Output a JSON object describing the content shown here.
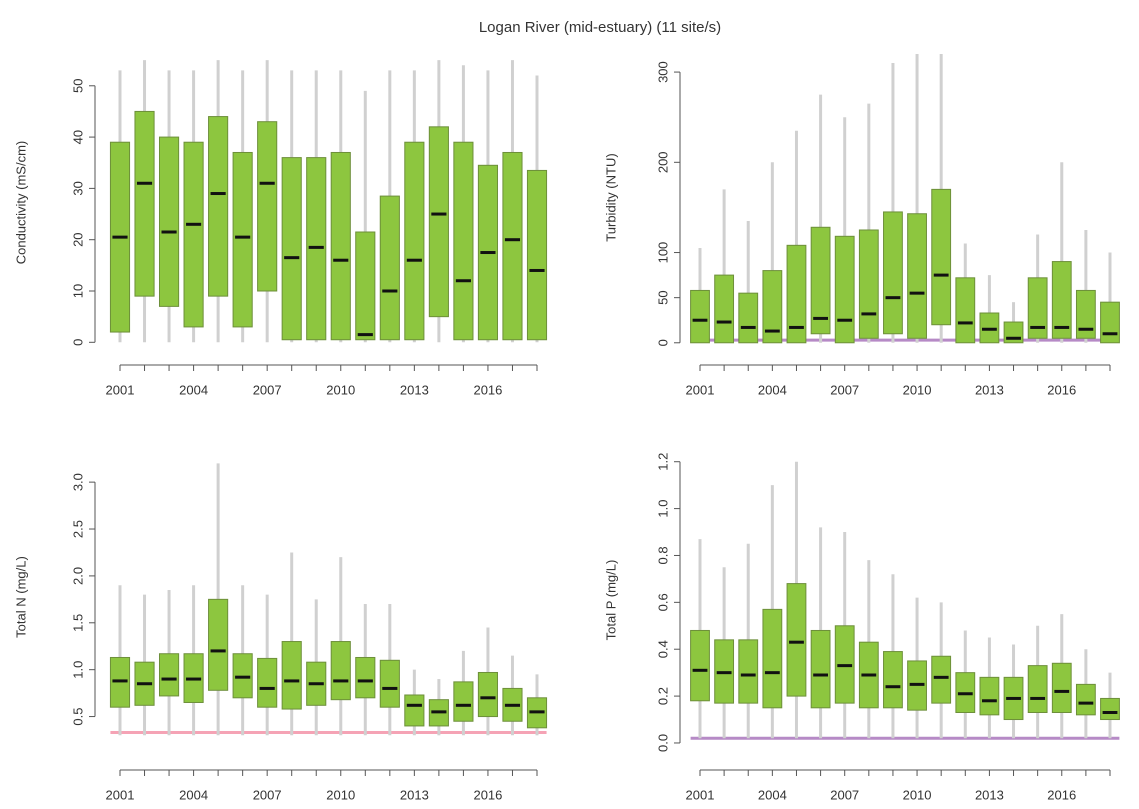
{
  "title": "Logan River (mid-estuary) (11 site/s)",
  "chart_data": [
    {
      "type": "boxplot",
      "ylabel": "Conductivity (mS/cm)",
      "color": "#8dc63f",
      "border": "#6d8f3a",
      "whisker_color": "#d0d0d0",
      "categories": [
        "2001",
        null,
        null,
        "2004",
        null,
        null,
        "2007",
        null,
        null,
        "2010",
        null,
        null,
        "2013",
        null,
        null,
        "2016",
        null,
        null
      ],
      "whisker_low": [
        0,
        0,
        0,
        0,
        0,
        0,
        0,
        0,
        0,
        0,
        0,
        0,
        0,
        0,
        0,
        0,
        0,
        0
      ],
      "q1": [
        2,
        9,
        7,
        3,
        9,
        3,
        10,
        0.5,
        0.5,
        0.5,
        0.5,
        0.5,
        0.5,
        5,
        0.5,
        0.5,
        0.5,
        0.5
      ],
      "median": [
        20.5,
        31,
        21.5,
        23,
        29,
        20.5,
        31,
        16.5,
        18.5,
        16,
        1.5,
        10,
        16,
        25,
        12,
        17.5,
        20,
        14
      ],
      "q3": [
        39,
        45,
        40,
        39,
        44,
        37,
        43,
        36,
        36,
        37,
        21.5,
        28.5,
        39,
        42,
        39,
        34.5,
        37,
        33.5
      ],
      "whisker_high": [
        53,
        55,
        53,
        53,
        55,
        53,
        55,
        53,
        53,
        53,
        49,
        53,
        53,
        55,
        54,
        53,
        55,
        52
      ],
      "ylim": [
        -1.5,
        56
      ],
      "yticks": [
        0,
        10,
        20,
        30,
        40,
        50
      ]
    },
    {
      "type": "boxplot",
      "ylabel": "Turbidity (NTU)",
      "color": "#8dc63f",
      "border": "#6d8f3a",
      "whisker_color": "#d0d0d0",
      "guideline": 3,
      "guideline_color": "#b68ac6",
      "categories": [
        "2001",
        null,
        null,
        "2004",
        null,
        null,
        "2007",
        null,
        null,
        "2010",
        null,
        null,
        "2013",
        null,
        null,
        "2016",
        null,
        null
      ],
      "whisker_low": [
        0,
        0,
        0,
        0,
        0,
        0,
        0,
        0,
        0,
        0,
        0,
        0,
        0,
        0,
        0,
        0,
        0,
        0
      ],
      "q1": [
        0,
        0,
        0,
        0,
        0,
        10,
        0,
        5,
        10,
        5,
        20,
        0,
        0,
        0,
        5,
        5,
        5,
        0
      ],
      "median": [
        25,
        23,
        17,
        13,
        17,
        27,
        25,
        32,
        50,
        55,
        75,
        22,
        15,
        5,
        17,
        17,
        15,
        10
      ],
      "q3": [
        58,
        75,
        55,
        80,
        108,
        128,
        118,
        125,
        145,
        143,
        170,
        72,
        33,
        23,
        72,
        90,
        58,
        45
      ],
      "whisker_high": [
        105,
        170,
        135,
        200,
        235,
        275,
        250,
        265,
        310,
        320,
        320,
        110,
        75,
        45,
        120,
        200,
        125,
        100
      ],
      "ylim": [
        -8,
        330
      ],
      "yticks": [
        0,
        50,
        100,
        200,
        300
      ]
    },
    {
      "type": "boxplot",
      "ylabel": "Total N (mg/L)",
      "color": "#8dc63f",
      "border": "#6d8f3a",
      "whisker_color": "#d0d0d0",
      "guideline": 0.33,
      "guideline_color": "#f5a3b5",
      "categories": [
        "2001",
        null,
        null,
        "2004",
        null,
        null,
        "2007",
        null,
        null,
        "2010",
        null,
        null,
        "2013",
        null,
        null,
        "2016",
        null,
        null
      ],
      "whisker_low": [
        0.3,
        0.3,
        0.3,
        0.3,
        0.3,
        0.3,
        0.3,
        0.3,
        0.3,
        0.3,
        0.3,
        0.3,
        0.3,
        0.3,
        0.3,
        0.3,
        0.3,
        0.3
      ],
      "q1": [
        0.6,
        0.62,
        0.72,
        0.65,
        0.78,
        0.7,
        0.6,
        0.58,
        0.62,
        0.68,
        0.7,
        0.6,
        0.4,
        0.4,
        0.45,
        0.5,
        0.45,
        0.38
      ],
      "median": [
        0.88,
        0.85,
        0.9,
        0.9,
        1.2,
        0.92,
        0.8,
        0.88,
        0.85,
        0.88,
        0.88,
        0.8,
        0.62,
        0.55,
        0.62,
        0.7,
        0.62,
        0.55
      ],
      "q3": [
        1.13,
        1.08,
        1.17,
        1.17,
        1.75,
        1.17,
        1.12,
        1.3,
        1.08,
        1.3,
        1.13,
        1.1,
        0.73,
        0.68,
        0.87,
        0.97,
        0.8,
        0.7
      ],
      "whisker_high": [
        1.9,
        1.8,
        1.85,
        1.9,
        3.2,
        1.9,
        1.8,
        2.25,
        1.75,
        2.2,
        1.7,
        1.7,
        1.0,
        0.9,
        1.2,
        1.45,
        1.15,
        0.95
      ],
      "ylim": [
        0.25,
        3.3
      ],
      "yticks": [
        0.5,
        {
          "value": 1,
          "label": "1.0"
        },
        1.5,
        {
          "value": 2,
          "label": "2.0"
        },
        2.5,
        {
          "value": 3,
          "label": "3.0"
        }
      ]
    },
    {
      "type": "boxplot",
      "ylabel": "Total P (mg/L)",
      "color": "#8dc63f",
      "border": "#6d8f3a",
      "whisker_color": "#d0d0d0",
      "guideline": 0.02,
      "guideline_color": "#b68ac6",
      "categories": [
        "2001",
        null,
        null,
        "2004",
        null,
        null,
        "2007",
        null,
        null,
        "2010",
        null,
        null,
        "2013",
        null,
        null,
        "2016",
        null,
        null
      ],
      "whisker_low": [
        0.02,
        0.02,
        0.02,
        0.02,
        0.02,
        0.02,
        0.02,
        0.02,
        0.02,
        0.02,
        0.02,
        0.02,
        0.02,
        0.02,
        0.02,
        0.02,
        0.02,
        0.02
      ],
      "q1": [
        0.18,
        0.17,
        0.17,
        0.15,
        0.2,
        0.15,
        0.17,
        0.15,
        0.15,
        0.14,
        0.17,
        0.13,
        0.12,
        0.1,
        0.13,
        0.13,
        0.12,
        0.1
      ],
      "median": [
        0.31,
        0.3,
        0.29,
        0.3,
        0.43,
        0.29,
        0.33,
        0.29,
        0.24,
        0.25,
        0.28,
        0.21,
        0.18,
        0.19,
        0.19,
        0.22,
        0.17,
        0.13
      ],
      "q3": [
        0.48,
        0.44,
        0.44,
        0.57,
        0.68,
        0.48,
        0.5,
        0.43,
        0.39,
        0.35,
        0.37,
        0.3,
        0.28,
        0.28,
        0.33,
        0.34,
        0.25,
        0.19
      ],
      "whisker_high": [
        0.87,
        0.75,
        0.85,
        1.1,
        1.2,
        0.92,
        0.9,
        0.78,
        0.72,
        0.62,
        0.6,
        0.48,
        0.45,
        0.42,
        0.5,
        0.55,
        0.4,
        0.3
      ],
      "ylim": [
        -0.03,
        1.25
      ],
      "yticks": [
        {
          "value": 0,
          "label": "0.0"
        },
        0.2,
        0.4,
        0.6,
        0.8,
        {
          "value": 1,
          "label": "1.0"
        },
        1.2
      ]
    }
  ]
}
